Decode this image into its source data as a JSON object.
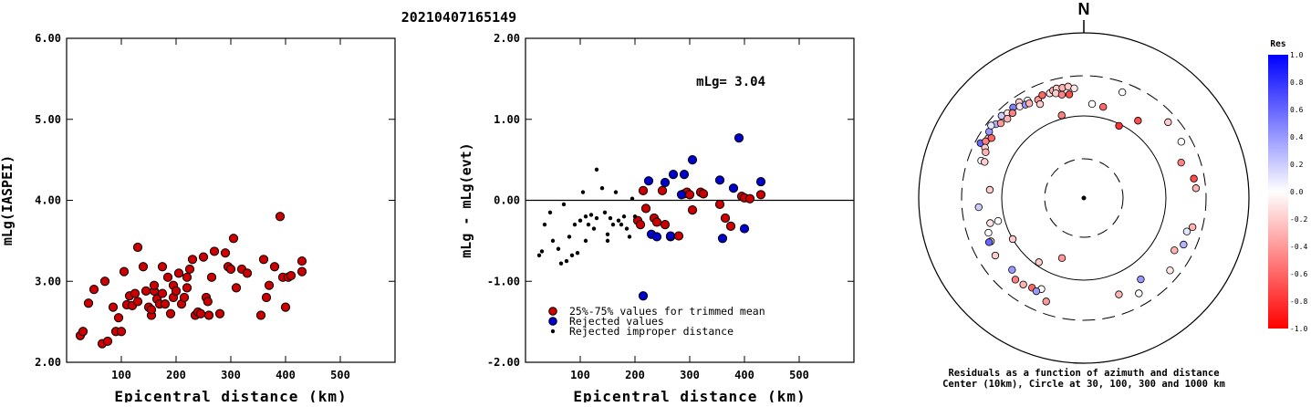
{
  "title": "20210407165149",
  "chart_data": [
    {
      "type": "scatter",
      "xlabel": "Epicentral distance (km)",
      "ylabel": "mLg(IASPEI)",
      "xlim": [
        0,
        600
      ],
      "ylim": [
        2.0,
        6.0
      ],
      "xticks": [
        {
          "v": 100,
          "label": "100"
        },
        {
          "v": 200,
          "label": "200"
        },
        {
          "v": 300,
          "label": "300"
        },
        {
          "v": 400,
          "label": "400"
        },
        {
          "v": 500,
          "label": "500"
        }
      ],
      "yticks": [
        {
          "v": 2.0,
          "label": "2.00"
        },
        {
          "v": 3.0,
          "label": "3.00"
        },
        {
          "v": 4.0,
          "label": "4.00"
        },
        {
          "v": 5.0,
          "label": "5.00"
        },
        {
          "v": 6.0,
          "label": "6.00"
        }
      ],
      "series": [
        {
          "color": "#cc0000",
          "points": [
            [
              25,
              2.33
            ],
            [
              30,
              2.38
            ],
            [
              40,
              2.73
            ],
            [
              50,
              2.9
            ],
            [
              65,
              2.23
            ],
            [
              70,
              3.0
            ],
            [
              75,
              2.26
            ],
            [
              85,
              2.68
            ],
            [
              90,
              2.38
            ],
            [
              95,
              2.55
            ],
            [
              100,
              2.38
            ],
            [
              105,
              3.12
            ],
            [
              110,
              2.71
            ],
            [
              115,
              2.82
            ],
            [
              120,
              2.7
            ],
            [
              125,
              2.85
            ],
            [
              130,
              3.42
            ],
            [
              130,
              2.75
            ],
            [
              140,
              3.18
            ],
            [
              145,
              2.88
            ],
            [
              150,
              2.68
            ],
            [
              155,
              2.58
            ],
            [
              155,
              2.65
            ],
            [
              160,
              2.88
            ],
            [
              160,
              2.95
            ],
            [
              165,
              2.78
            ],
            [
              170,
              2.72
            ],
            [
              175,
              3.18
            ],
            [
              175,
              2.85
            ],
            [
              180,
              2.72
            ],
            [
              185,
              3.05
            ],
            [
              190,
              2.6
            ],
            [
              195,
              2.95
            ],
            [
              195,
              2.8
            ],
            [
              200,
              2.88
            ],
            [
              205,
              3.1
            ],
            [
              210,
              2.72
            ],
            [
              215,
              2.8
            ],
            [
              220,
              2.92
            ],
            [
              220,
              3.05
            ],
            [
              225,
              3.15
            ],
            [
              230,
              3.27
            ],
            [
              235,
              2.58
            ],
            [
              240,
              2.62
            ],
            [
              245,
              2.6
            ],
            [
              250,
              3.3
            ],
            [
              255,
              2.8
            ],
            [
              258,
              2.75
            ],
            [
              260,
              2.58
            ],
            [
              265,
              3.05
            ],
            [
              270,
              3.37
            ],
            [
              280,
              2.6
            ],
            [
              290,
              3.35
            ],
            [
              295,
              3.18
            ],
            [
              300,
              3.15
            ],
            [
              305,
              3.53
            ],
            [
              310,
              2.92
            ],
            [
              320,
              3.15
            ],
            [
              330,
              3.1
            ],
            [
              355,
              2.58
            ],
            [
              360,
              3.27
            ],
            [
              365,
              2.8
            ],
            [
              370,
              2.95
            ],
            [
              380,
              3.18
            ],
            [
              390,
              3.8
            ],
            [
              395,
              3.05
            ],
            [
              400,
              2.68
            ],
            [
              405,
              3.05
            ],
            [
              410,
              3.07
            ],
            [
              430,
              3.25
            ],
            [
              430,
              3.12
            ]
          ]
        }
      ]
    },
    {
      "type": "scatter",
      "xlabel": "Epicentral distance (km)",
      "ylabel": "mLg - mLg(evt)",
      "xlim": [
        0,
        600
      ],
      "ylim": [
        -2.0,
        2.0
      ],
      "annotation": "mLg= 3.04",
      "xticks": [
        {
          "v": 100,
          "label": "100"
        },
        {
          "v": 200,
          "label": "200"
        },
        {
          "v": 300,
          "label": "300"
        },
        {
          "v": 400,
          "label": "400"
        },
        {
          "v": 500,
          "label": "500"
        }
      ],
      "yticks": [
        {
          "v": -2.0,
          "label": "-2.00"
        },
        {
          "v": -1.0,
          "label": "-1.00"
        },
        {
          "v": 0.0,
          "label": "0.00"
        },
        {
          "v": 1.0,
          "label": "1.00"
        },
        {
          "v": 2.0,
          "label": "2.00"
        }
      ],
      "series": [
        {
          "name": "25%-75% values for trimmed mean",
          "color": "#cc0000",
          "marker": "circle",
          "points": [
            [
              205,
              -0.25
            ],
            [
              210,
              -0.3
            ],
            [
              215,
              0.12
            ],
            [
              220,
              -0.1
            ],
            [
              235,
              -0.22
            ],
            [
              240,
              -0.27
            ],
            [
              250,
              0.12
            ],
            [
              255,
              -0.3
            ],
            [
              265,
              -0.45
            ],
            [
              280,
              -0.44
            ],
            [
              290,
              0.08
            ],
            [
              295,
              0.1
            ],
            [
              300,
              0.07
            ],
            [
              305,
              -0.12
            ],
            [
              320,
              0.1
            ],
            [
              325,
              0.08
            ],
            [
              355,
              -0.05
            ],
            [
              365,
              -0.22
            ],
            [
              375,
              -0.32
            ],
            [
              395,
              0.05
            ],
            [
              400,
              0.03
            ],
            [
              410,
              0.02
            ],
            [
              430,
              0.07
            ]
          ]
        },
        {
          "name": "Rejected values",
          "color": "#0000cc",
          "marker": "circle",
          "points": [
            [
              215,
              -1.18
            ],
            [
              225,
              0.24
            ],
            [
              230,
              -0.42
            ],
            [
              240,
              -0.45
            ],
            [
              255,
              0.22
            ],
            [
              265,
              -0.44
            ],
            [
              270,
              0.32
            ],
            [
              285,
              0.07
            ],
            [
              290,
              0.32
            ],
            [
              305,
              0.5
            ],
            [
              355,
              0.25
            ],
            [
              360,
              -0.47
            ],
            [
              380,
              0.15
            ],
            [
              390,
              0.77
            ],
            [
              400,
              -0.35
            ],
            [
              430,
              0.23
            ]
          ]
        },
        {
          "name": "Rejected improper distance",
          "color": "#000000",
          "marker": "dot",
          "points": [
            [
              25,
              -0.68
            ],
            [
              30,
              -0.63
            ],
            [
              35,
              -0.3
            ],
            [
              45,
              -0.15
            ],
            [
              50,
              -0.5
            ],
            [
              60,
              -0.6
            ],
            [
              65,
              -0.78
            ],
            [
              70,
              -0.05
            ],
            [
              75,
              -0.75
            ],
            [
              80,
              -0.45
            ],
            [
              85,
              -0.68
            ],
            [
              90,
              -0.3
            ],
            [
              95,
              -0.65
            ],
            [
              100,
              -0.25
            ],
            [
              105,
              0.1
            ],
            [
              110,
              -0.2
            ],
            [
              110,
              -0.5
            ],
            [
              115,
              -0.3
            ],
            [
              120,
              -0.18
            ],
            [
              125,
              -0.35
            ],
            [
              130,
              0.38
            ],
            [
              130,
              -0.22
            ],
            [
              140,
              0.15
            ],
            [
              145,
              -0.15
            ],
            [
              150,
              -0.42
            ],
            [
              150,
              -0.5
            ],
            [
              155,
              -0.22
            ],
            [
              160,
              -0.3
            ],
            [
              165,
              0.1
            ],
            [
              170,
              -0.25
            ],
            [
              175,
              -0.3
            ],
            [
              180,
              -0.2
            ],
            [
              185,
              -0.35
            ],
            [
              190,
              -0.45
            ],
            [
              195,
              0.02
            ],
            [
              200,
              -0.2
            ]
          ]
        }
      ]
    },
    {
      "type": "scatter",
      "subtype": "polar",
      "north_label": "N",
      "caption1": "Residuals as a function of azimuth and distance",
      "caption2": "Center (10km), Circle at 30, 100, 300 and 1000 km",
      "rings_km": [
        10,
        30,
        100,
        300,
        1000
      ],
      "colorbar": {
        "title": "Res",
        "range": [
          -1.0,
          1.0
        ],
        "max_color": "#0000ff",
        "mid_color": "#ffffff",
        "min_color": "#ff0000",
        "tick_labels": [
          {
            "v": 1.0,
            "label": "1.0"
          },
          {
            "v": 0.8,
            "label": "0.8"
          },
          {
            "v": 0.6,
            "label": "0.6"
          },
          {
            "v": 0.4,
            "label": "0.4"
          },
          {
            "v": 0.2,
            "label": "0.2"
          },
          {
            "v": 0.0,
            "label": "0.0"
          },
          {
            "v": -0.2,
            "label": "-0.2"
          },
          {
            "v": -0.4,
            "label": "-0.4"
          },
          {
            "v": -0.6,
            "label": "-0.6"
          },
          {
            "v": -0.8,
            "label": "-0.8"
          },
          {
            "v": -1.0,
            "label": "-1.0"
          }
        ]
      },
      "points_az_dist_res": [
        [
          302,
          230,
          -0.3
        ],
        [
          298,
          260,
          0.6
        ],
        [
          305,
          250,
          0.4
        ],
        [
          310,
          245,
          0.3
        ],
        [
          315,
          255,
          0.2
        ],
        [
          308,
          265,
          0.1
        ],
        [
          300,
          235,
          -0.5
        ],
        [
          297,
          220,
          -0.2
        ],
        [
          303,
          215,
          -0.6
        ],
        [
          295,
          205,
          -0.3
        ],
        [
          290,
          210,
          0.0
        ],
        [
          318,
          240,
          -0.1
        ],
        [
          322,
          245,
          0.5
        ],
        [
          326,
          250,
          -0.2
        ],
        [
          312,
          225,
          -0.4
        ],
        [
          316,
          215,
          -0.3
        ],
        [
          320,
          220,
          -0.5
        ],
        [
          325,
          225,
          -0.1
        ],
        [
          330,
          215,
          -0.2
        ],
        [
          335,
          205,
          -0.4
        ],
        [
          338,
          220,
          -0.6
        ],
        [
          342,
          215,
          -0.1
        ],
        [
          344,
          225,
          -0.3
        ],
        [
          346,
          232,
          -0.2
        ],
        [
          349,
          228,
          -0.3
        ],
        [
          352,
          230,
          -0.2
        ],
        [
          355,
          215,
          -0.1
        ],
        [
          335,
          180,
          -0.2
        ],
        [
          330,
          230,
          0.0
        ],
        [
          328,
          215,
          0.4
        ],
        [
          345,
          205,
          -0.2
        ],
        [
          348,
          190,
          -0.5
        ],
        [
          352,
          185,
          -0.7
        ],
        [
          5,
          140,
          0.0
        ],
        [
          12,
          135,
          -0.6
        ],
        [
          26,
          95,
          -0.8
        ],
        [
          345,
          110,
          -0.5
        ],
        [
          35,
          140,
          -0.7
        ],
        [
          70,
          180,
          -0.5
        ],
        [
          80,
          225,
          -0.7
        ],
        [
          85,
          230,
          -0.3
        ],
        [
          330,
          210,
          -0.3
        ],
        [
          20,
          230,
          0.0
        ],
        [
          48,
          235,
          -0.2
        ],
        [
          105,
          230,
          -0.3
        ],
        [
          130,
          230,
          -0.1
        ],
        [
          200,
          60,
          -0.4
        ],
        [
          215,
          90,
          -0.2
        ],
        [
          240,
          100,
          -0.2
        ],
        [
          255,
          120,
          0.0
        ],
        [
          275,
          140,
          -0.2
        ],
        [
          255,
          150,
          -0.1
        ],
        [
          250,
          170,
          0.0
        ],
        [
          245,
          175,
          -0.2
        ],
        [
          245,
          185,
          0.6
        ],
        [
          265,
          190,
          0.2
        ],
        [
          237,
          190,
          -0.2
        ],
        [
          225,
          170,
          0.4
        ],
        [
          220,
          195,
          -0.5
        ],
        [
          210,
          180,
          -0.6
        ],
        [
          205,
          165,
          0.0
        ],
        [
          207,
          185,
          0.4
        ],
        [
          215,
          190,
          -0.3
        ],
        [
          200,
          215,
          -0.4
        ],
        [
          150,
          215,
          0.0
        ],
        [
          145,
          160,
          0.4
        ],
        [
          160,
          175,
          -0.3
        ],
        [
          120,
          185,
          -0.3
        ],
        [
          115,
          215,
          0.3
        ],
        [
          108,
          205,
          0.1
        ],
        [
          60,
          230,
          0.0
        ],
        [
          290,
          190,
          -0.2
        ]
      ]
    }
  ]
}
